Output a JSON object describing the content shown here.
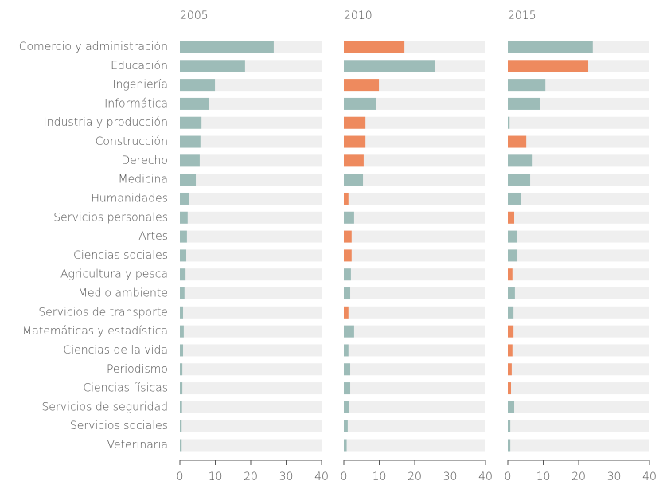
{
  "chart_data": {
    "type": "bar",
    "categories": [
      "Comercio y administración",
      "Educación",
      "Ingeniería",
      "Informática",
      "Industria y producción",
      "Construcción",
      "Derecho",
      "Medicina",
      "Humanidades",
      "Servicios personales",
      "Artes",
      "Ciencias sociales",
      "Agricultura y pesca",
      "Medio ambiente",
      "Servicios de transporte",
      "Matemáticas y estadística",
      "Ciencias de la vida",
      "Periodismo",
      "Ciencias físicas",
      "Servicios de seguridad",
      "Servicios sociales",
      "Veterinaria"
    ],
    "series": [
      {
        "name": "2005",
        "values": [
          26.5,
          18.4,
          9.9,
          8.1,
          6.1,
          5.8,
          5.6,
          4.5,
          2.5,
          2.2,
          2.0,
          1.8,
          1.6,
          1.3,
          0.9,
          1.1,
          0.9,
          0.7,
          0.7,
          0.6,
          0.5,
          0.5
        ],
        "colors": [
          "#9dbcb8",
          "#9dbcb8",
          "#9dbcb8",
          "#9dbcb8",
          "#9dbcb8",
          "#9dbcb8",
          "#9dbcb8",
          "#9dbcb8",
          "#9dbcb8",
          "#9dbcb8",
          "#9dbcb8",
          "#9dbcb8",
          "#9dbcb8",
          "#9dbcb8",
          "#9dbcb8",
          "#9dbcb8",
          "#9dbcb8",
          "#9dbcb8",
          "#9dbcb8",
          "#9dbcb8",
          "#9dbcb8",
          "#9dbcb8"
        ]
      },
      {
        "name": "2010",
        "values": [
          17.1,
          25.8,
          9.9,
          9.0,
          6.1,
          6.1,
          5.6,
          5.4,
          1.3,
          2.9,
          2.2,
          2.2,
          2.0,
          1.8,
          1.3,
          2.9,
          1.3,
          1.8,
          1.8,
          1.5,
          1.1,
          0.8
        ],
        "colors": [
          "#ee8a5e",
          "#9dbcb8",
          "#ee8a5e",
          "#9dbcb8",
          "#ee8a5e",
          "#ee8a5e",
          "#ee8a5e",
          "#9dbcb8",
          "#ee8a5e",
          "#9dbcb8",
          "#ee8a5e",
          "#ee8a5e",
          "#9dbcb8",
          "#9dbcb8",
          "#ee8a5e",
          "#9dbcb8",
          "#9dbcb8",
          "#9dbcb8",
          "#9dbcb8",
          "#9dbcb8",
          "#9dbcb8",
          "#9dbcb8"
        ]
      },
      {
        "name": "2015",
        "values": [
          24.0,
          22.7,
          10.6,
          9.0,
          0.5,
          5.2,
          7.0,
          6.3,
          3.8,
          1.8,
          2.5,
          2.7,
          1.3,
          2.0,
          1.6,
          1.6,
          1.3,
          1.1,
          0.9,
          1.8,
          0.7,
          0.7
        ],
        "colors": [
          "#9dbcb8",
          "#ee8a5e",
          "#9dbcb8",
          "#9dbcb8",
          "#9dbcb8",
          "#ee8a5e",
          "#9dbcb8",
          "#9dbcb8",
          "#9dbcb8",
          "#ee8a5e",
          "#9dbcb8",
          "#9dbcb8",
          "#ee8a5e",
          "#9dbcb8",
          "#9dbcb8",
          "#ee8a5e",
          "#ee8a5e",
          "#ee8a5e",
          "#ee8a5e",
          "#9dbcb8",
          "#9dbcb8",
          "#9dbcb8"
        ]
      }
    ],
    "xlim": [
      0,
      40
    ],
    "xticks": [
      0,
      10,
      20,
      30,
      40
    ],
    "track_color": "#efefef"
  }
}
